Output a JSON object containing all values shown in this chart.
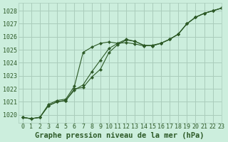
{
  "title": "Graphe pression niveau de la mer (hPa)",
  "background_color": "#cceedd",
  "grid_color": "#aaccbb",
  "line_color": "#2d5a27",
  "xlim": [
    -0.5,
    23
  ],
  "ylim": [
    1019.4,
    1028.6
  ],
  "yticks": [
    1020,
    1021,
    1022,
    1023,
    1024,
    1025,
    1026,
    1027,
    1028
  ],
  "xticks": [
    0,
    1,
    2,
    3,
    4,
    5,
    6,
    7,
    8,
    9,
    10,
    11,
    12,
    13,
    14,
    15,
    16,
    17,
    18,
    19,
    20,
    21,
    22,
    23
  ],
  "line1_x": [
    0,
    1,
    2,
    3,
    4,
    5,
    6,
    7,
    8,
    9,
    10,
    11,
    12,
    13,
    14,
    15,
    16,
    17,
    18,
    19,
    20,
    21,
    22,
    23
  ],
  "line1_y": [
    1019.8,
    1019.7,
    1019.8,
    1020.8,
    1021.1,
    1021.2,
    1022.2,
    1024.8,
    1025.2,
    1025.5,
    1025.6,
    1025.5,
    1025.55,
    1025.45,
    1025.3,
    1025.35,
    1025.5,
    1025.8,
    1026.2,
    1027.0,
    1027.5,
    1027.8,
    1028.0,
    1028.2
  ],
  "line2_x": [
    0,
    1,
    2,
    3,
    4,
    5,
    6,
    7,
    8,
    9,
    10,
    11,
    12,
    13,
    14,
    15,
    16,
    17,
    18,
    19,
    20,
    21,
    22,
    23
  ],
  "line2_y": [
    1019.8,
    1019.7,
    1019.8,
    1020.7,
    1021.0,
    1021.1,
    1021.9,
    1022.3,
    1023.3,
    1024.2,
    1025.1,
    1025.5,
    1025.8,
    1025.65,
    1025.35,
    1025.3,
    1025.5,
    1025.8,
    1026.2,
    1027.0,
    1027.5,
    1027.8,
    1028.0,
    1028.2
  ],
  "line3_x": [
    0,
    1,
    2,
    3,
    4,
    5,
    6,
    7,
    8,
    9,
    10,
    11,
    12,
    13,
    14,
    15,
    16,
    17,
    18,
    19,
    20,
    21,
    22,
    23
  ],
  "line3_y": [
    1019.8,
    1019.7,
    1019.8,
    1020.7,
    1021.0,
    1021.1,
    1022.0,
    1022.1,
    1022.9,
    1023.5,
    1024.8,
    1025.4,
    1025.75,
    1025.65,
    1025.35,
    1025.3,
    1025.5,
    1025.8,
    1026.2,
    1027.0,
    1027.5,
    1027.8,
    1028.0,
    1028.2
  ],
  "tick_fontsize": 6,
  "title_fontsize": 7.5
}
